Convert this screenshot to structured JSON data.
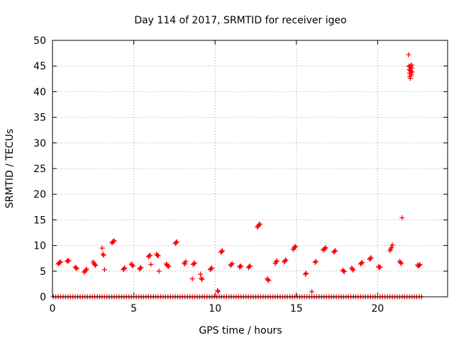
{
  "chart_data": {
    "type": "scatter",
    "title": "Day 114 of 2017, SRMTID for receiver igeo",
    "xlabel": "GPS time / hours",
    "ylabel": "SRMTID / TECUs",
    "xlim": [
      0,
      24.3
    ],
    "ylim": [
      0,
      50
    ],
    "xticks": [
      0,
      5,
      10,
      15,
      20
    ],
    "yticks": [
      0,
      5,
      10,
      15,
      20,
      25,
      30,
      35,
      40,
      45,
      50
    ],
    "grid": true,
    "marker": "plus",
    "color": "#ff0000",
    "points": [
      [
        0.35,
        6.4
      ],
      [
        0.4,
        6.6
      ],
      [
        0.45,
        6.7
      ],
      [
        0.5,
        6.8
      ],
      [
        0.9,
        6.9
      ],
      [
        0.95,
        7.1
      ],
      [
        1.0,
        7.0
      ],
      [
        1.4,
        5.8
      ],
      [
        1.45,
        5.6
      ],
      [
        1.5,
        5.5
      ],
      [
        1.95,
        4.8
      ],
      [
        2.0,
        5.0
      ],
      [
        2.05,
        5.2
      ],
      [
        2.1,
        5.4
      ],
      [
        2.5,
        6.8
      ],
      [
        2.55,
        6.5
      ],
      [
        2.6,
        6.3
      ],
      [
        2.65,
        6.1
      ],
      [
        3.05,
        9.5
      ],
      [
        3.1,
        8.3
      ],
      [
        3.15,
        8.1
      ],
      [
        3.2,
        5.3
      ],
      [
        3.65,
        10.5
      ],
      [
        3.7,
        10.7
      ],
      [
        3.75,
        10.8
      ],
      [
        3.8,
        10.9
      ],
      [
        4.35,
        5.3
      ],
      [
        4.4,
        5.5
      ],
      [
        4.45,
        5.6
      ],
      [
        4.85,
        6.4
      ],
      [
        4.9,
        6.2
      ],
      [
        4.95,
        6.0
      ],
      [
        5.35,
        5.4
      ],
      [
        5.4,
        5.6
      ],
      [
        5.45,
        5.7
      ],
      [
        5.9,
        7.8
      ],
      [
        5.95,
        8.0
      ],
      [
        6.0,
        8.1
      ],
      [
        6.05,
        6.3
      ],
      [
        6.4,
        8.3
      ],
      [
        6.45,
        8.1
      ],
      [
        6.5,
        8.0
      ],
      [
        6.55,
        5.0
      ],
      [
        7.0,
        6.4
      ],
      [
        7.05,
        6.2
      ],
      [
        7.1,
        6.0
      ],
      [
        7.15,
        5.9
      ],
      [
        7.55,
        10.4
      ],
      [
        7.6,
        10.6
      ],
      [
        7.65,
        10.7
      ],
      [
        8.1,
        6.6
      ],
      [
        8.15,
        6.4
      ],
      [
        8.2,
        6.9
      ],
      [
        8.6,
        3.5
      ],
      [
        8.65,
        6.3
      ],
      [
        8.7,
        6.5
      ],
      [
        8.75,
        6.6
      ],
      [
        9.1,
        4.4
      ],
      [
        9.15,
        3.6
      ],
      [
        9.2,
        3.4
      ],
      [
        9.7,
        5.3
      ],
      [
        9.75,
        5.5
      ],
      [
        9.8,
        5.6
      ],
      [
        10.15,
        1.2
      ],
      [
        10.2,
        1.0
      ],
      [
        10.35,
        8.7
      ],
      [
        10.4,
        8.8
      ],
      [
        10.45,
        9.0
      ],
      [
        10.95,
        6.1
      ],
      [
        11.0,
        6.3
      ],
      [
        11.05,
        6.5
      ],
      [
        11.5,
        5.8
      ],
      [
        11.55,
        6.0
      ],
      [
        11.6,
        5.9
      ],
      [
        12.05,
        5.7
      ],
      [
        12.1,
        5.9
      ],
      [
        12.15,
        6.0
      ],
      [
        12.6,
        13.6
      ],
      [
        12.65,
        13.8
      ],
      [
        12.7,
        14.0
      ],
      [
        12.75,
        14.2
      ],
      [
        13.2,
        3.5
      ],
      [
        13.25,
        3.3
      ],
      [
        13.3,
        3.2
      ],
      [
        13.7,
        6.5
      ],
      [
        13.75,
        6.8
      ],
      [
        13.8,
        7.0
      ],
      [
        14.25,
        6.8
      ],
      [
        14.3,
        7.0
      ],
      [
        14.35,
        7.2
      ],
      [
        14.8,
        9.2
      ],
      [
        14.85,
        9.5
      ],
      [
        14.9,
        9.7
      ],
      [
        14.95,
        9.8
      ],
      [
        15.55,
        4.4
      ],
      [
        15.6,
        4.6
      ],
      [
        15.95,
        1.0
      ],
      [
        16.15,
        6.7
      ],
      [
        16.2,
        6.9
      ],
      [
        16.65,
        9.1
      ],
      [
        16.7,
        9.3
      ],
      [
        16.75,
        9.4
      ],
      [
        16.8,
        9.6
      ],
      [
        17.3,
        8.7
      ],
      [
        17.35,
        8.9
      ],
      [
        17.4,
        9.0
      ],
      [
        17.85,
        5.2
      ],
      [
        17.9,
        5.0
      ],
      [
        17.95,
        4.9
      ],
      [
        18.4,
        5.6
      ],
      [
        18.45,
        5.4
      ],
      [
        18.5,
        5.2
      ],
      [
        18.95,
        6.4
      ],
      [
        19.0,
        6.6
      ],
      [
        19.05,
        6.7
      ],
      [
        19.5,
        7.3
      ],
      [
        19.55,
        7.5
      ],
      [
        19.6,
        7.6
      ],
      [
        20.05,
        5.9
      ],
      [
        20.1,
        5.7
      ],
      [
        20.15,
        5.8
      ],
      [
        20.75,
        9.0
      ],
      [
        20.8,
        9.3
      ],
      [
        20.85,
        9.6
      ],
      [
        20.9,
        10.1
      ],
      [
        21.35,
        6.9
      ],
      [
        21.4,
        6.7
      ],
      [
        21.45,
        6.5
      ],
      [
        21.5,
        15.4
      ],
      [
        21.9,
        47.2
      ],
      [
        21.92,
        45.0
      ],
      [
        21.94,
        44.3
      ],
      [
        21.96,
        43.6
      ],
      [
        21.98,
        43.0
      ],
      [
        22.0,
        42.6
      ],
      [
        22.02,
        44.8
      ],
      [
        22.04,
        44.0
      ],
      [
        22.06,
        43.3
      ],
      [
        22.08,
        45.2
      ],
      [
        22.1,
        44.6
      ],
      [
        22.12,
        43.8
      ],
      [
        22.0,
        44.2
      ],
      [
        21.95,
        44.9
      ],
      [
        22.05,
        45.1
      ],
      [
        22.45,
        6.2
      ],
      [
        22.5,
        6.0
      ],
      [
        22.55,
        6.1
      ],
      [
        22.6,
        6.3
      ]
    ],
    "baseline": {
      "y": 0,
      "x_start": 0.05,
      "x_end": 22.7,
      "x_step": 0.15
    }
  }
}
